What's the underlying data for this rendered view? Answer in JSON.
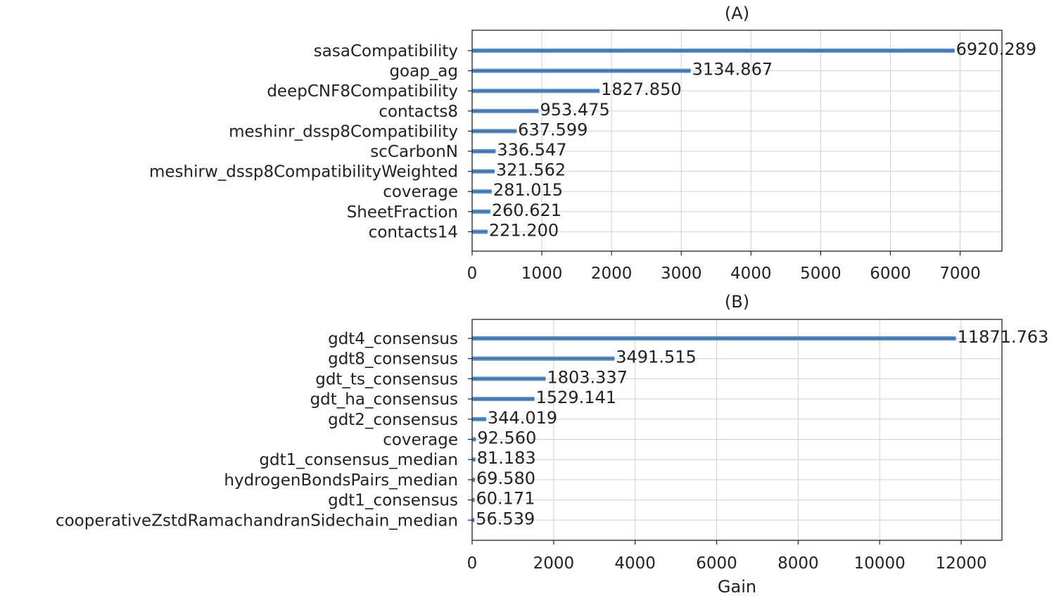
{
  "chart_data": [
    {
      "type": "bar",
      "orientation": "horizontal",
      "title": "(A)",
      "xlabel": "",
      "xlim": [
        0,
        7600
      ],
      "xticks": [
        0,
        1000,
        2000,
        3000,
        4000,
        5000,
        6000,
        7000
      ],
      "grid": true,
      "bar_color": "#5b8fc3",
      "categories": [
        "sasaCompatibility",
        "goap_ag",
        "deepCNF8Compatibility",
        "contacts8",
        "meshinr_dssp8Compatibility",
        "scCarbonN",
        "meshirw_dssp8CompatibilityWeighted",
        "coverage",
        "SheetFraction",
        "contacts14"
      ],
      "values": [
        6920.289,
        3134.867,
        1827.85,
        953.475,
        637.599,
        336.547,
        321.562,
        281.015,
        260.621,
        221.2
      ],
      "value_labels": [
        "6920.289",
        "3134.867",
        "1827.850",
        "953.475",
        "637.599",
        "336.547",
        "321.562",
        "281.015",
        "260.621",
        "221.200"
      ]
    },
    {
      "type": "bar",
      "orientation": "horizontal",
      "title": "(B)",
      "xlabel": "Gain",
      "xlim": [
        0,
        13000
      ],
      "xticks": [
        0,
        2000,
        4000,
        6000,
        8000,
        10000,
        12000
      ],
      "grid": true,
      "bar_color": "#5b8fc3",
      "categories": [
        "gdt4_consensus",
        "gdt8_consensus",
        "gdt_ts_consensus",
        "gdt_ha_consensus",
        "gdt2_consensus",
        "coverage",
        "gdt1_consensus_median",
        "hydrogenBondsPairs_median",
        "gdt1_consensus",
        "cooperativeZstdRamachandranSidechain_median"
      ],
      "values": [
        11871.763,
        3491.515,
        1803.337,
        1529.141,
        344.019,
        92.56,
        81.183,
        69.58,
        60.171,
        56.539
      ],
      "value_labels": [
        "11871.763",
        "3491.515",
        "1803.337",
        "1529.141",
        "344.019",
        "92.560",
        "81.183",
        "69.580",
        "60.171",
        "56.539"
      ]
    }
  ]
}
